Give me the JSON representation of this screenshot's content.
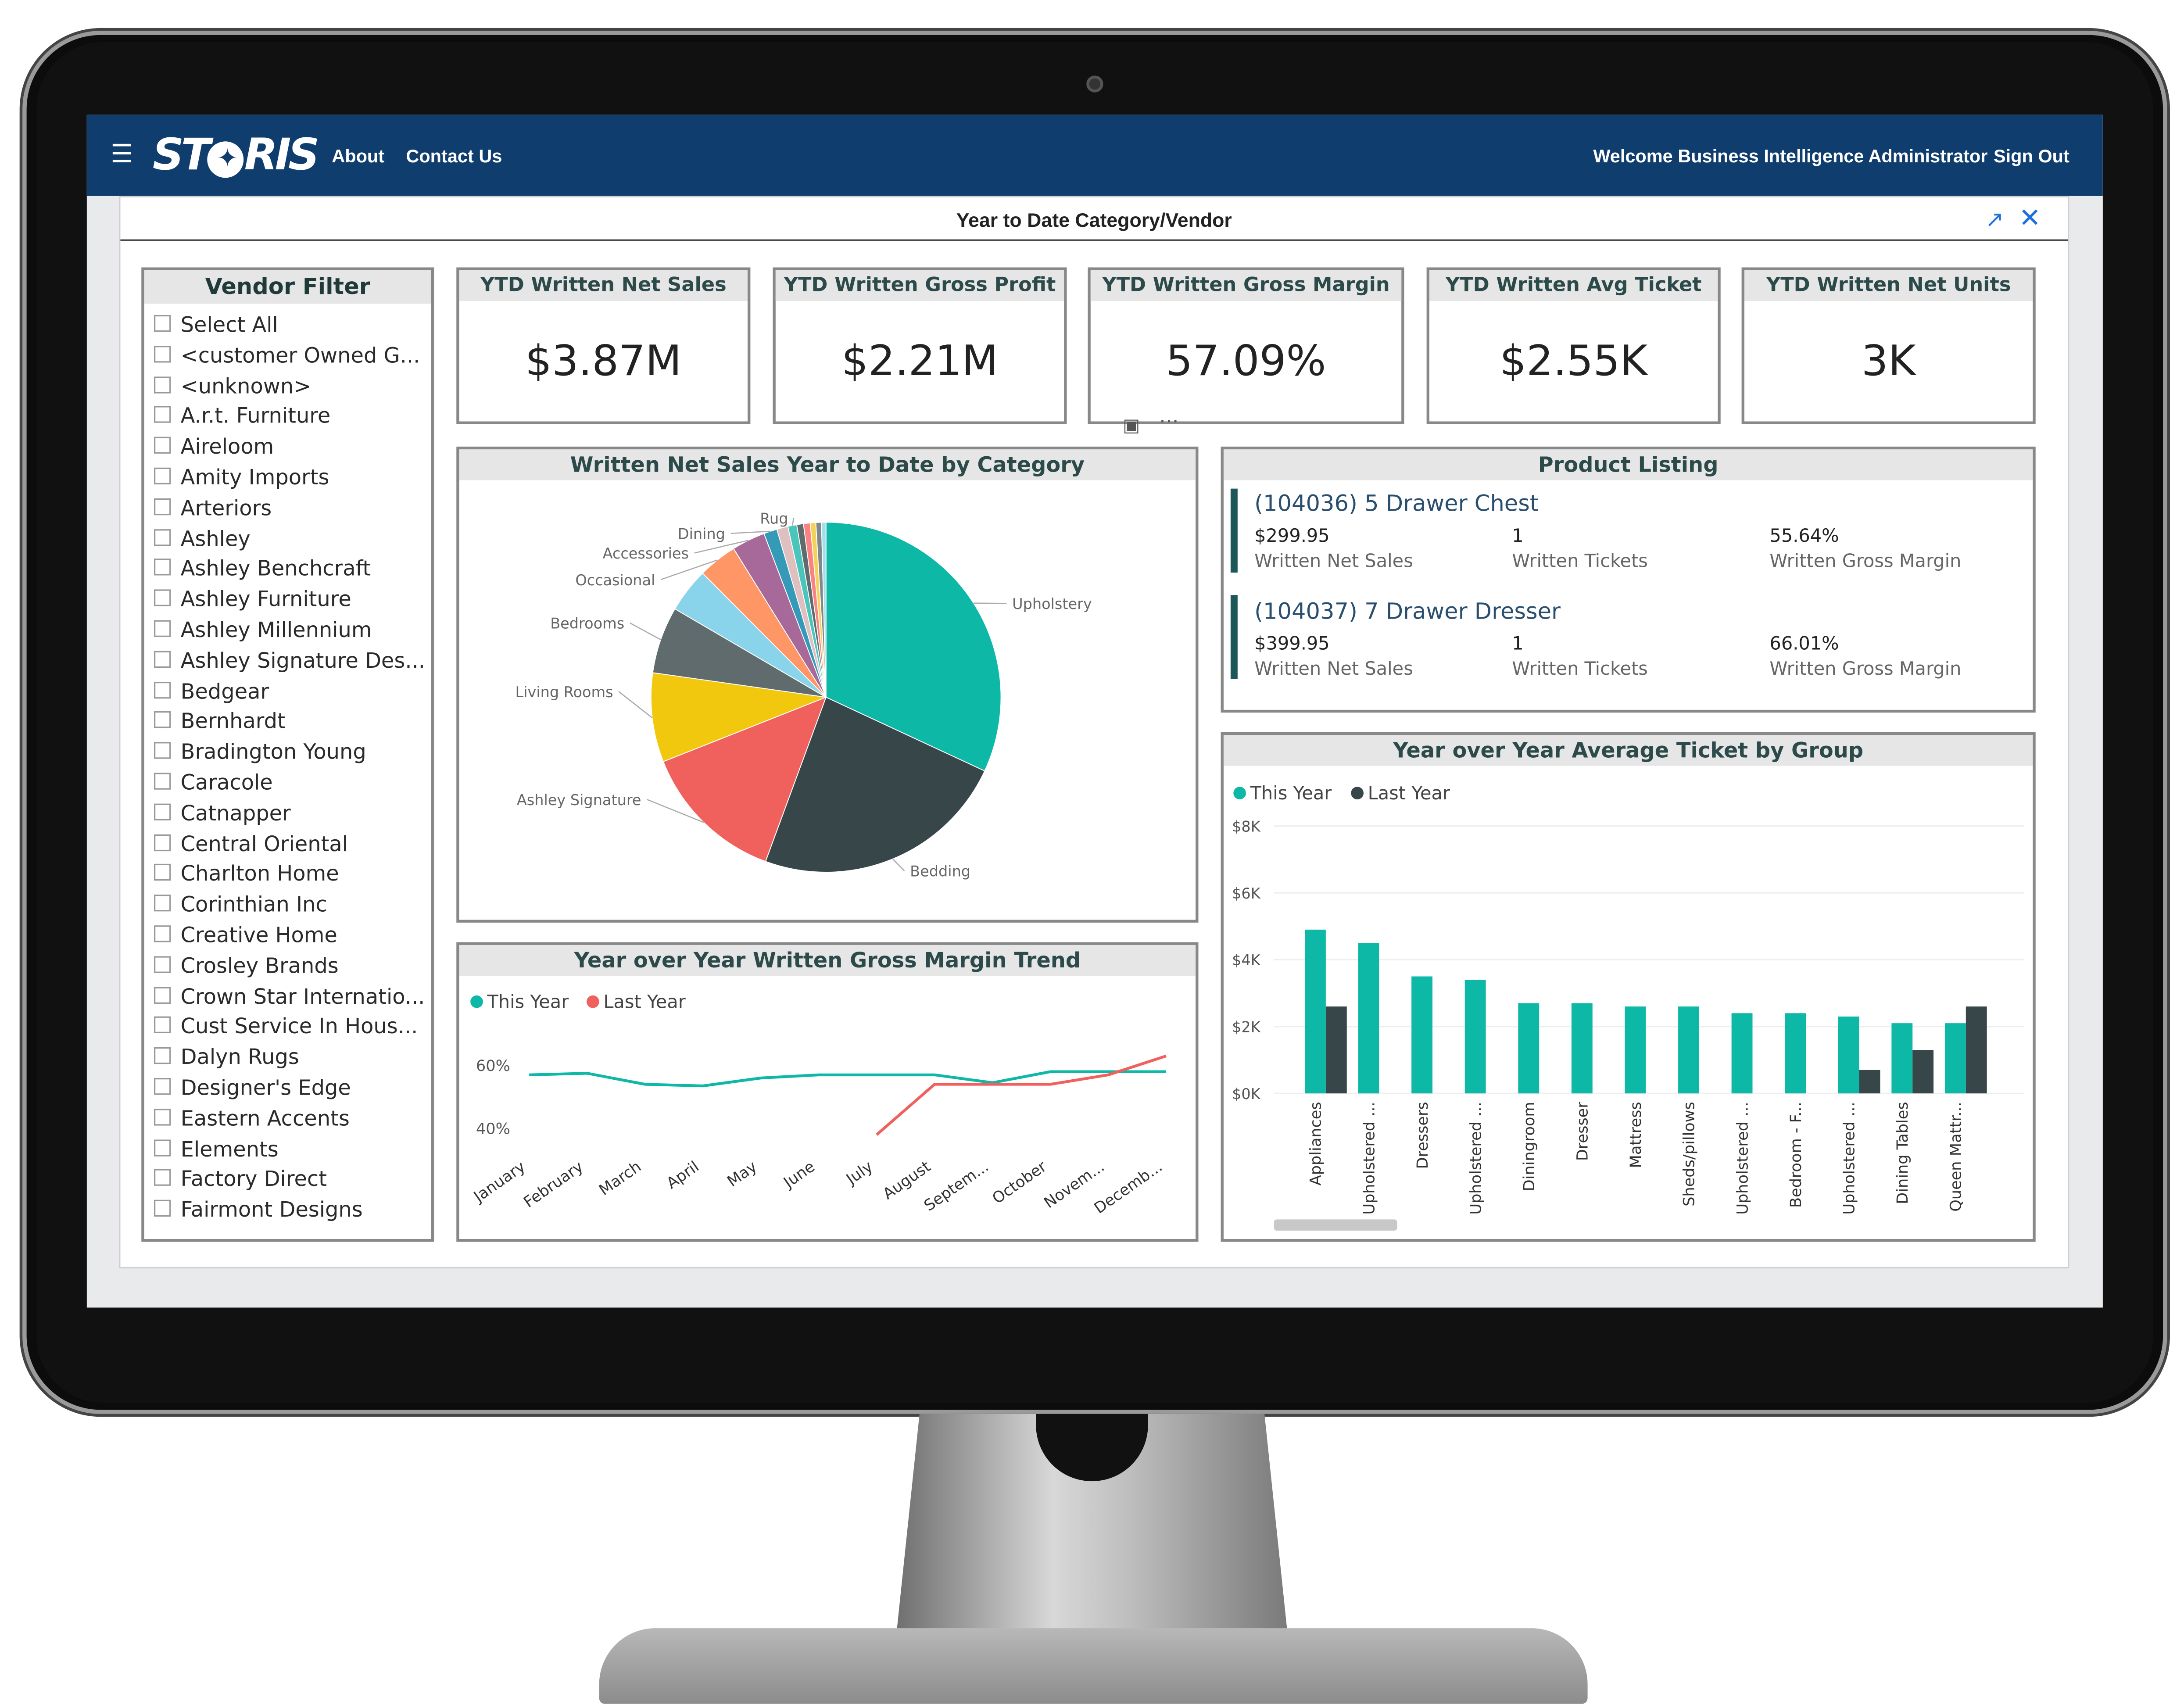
{
  "nav": {
    "brand": "STORIS",
    "about": "About",
    "contact": "Contact Us",
    "welcome": "Welcome Business Intelligence Administrator",
    "signout": "Sign Out"
  },
  "report": {
    "title": "Year to Date Category/Vendor"
  },
  "vendor_filter": {
    "title": "Vendor Filter",
    "items": [
      "Select All",
      "<customer Owned G...",
      "<unknown>",
      "A.r.t. Furniture",
      "Aireloom",
      "Amity Imports",
      "Arteriors",
      "Ashley",
      "Ashley Benchcraft",
      "Ashley Furniture",
      "Ashley Millennium",
      "Ashley Signature Des...",
      "Bedgear",
      "Bernhardt",
      "Bradington Young",
      "Caracole",
      "Catnapper",
      "Central Oriental",
      "Charlton Home",
      "Corinthian Inc",
      "Creative Home",
      "Crosley Brands",
      "Crown Star Internatio...",
      "Cust Service In Hous...",
      "Dalyn Rugs",
      "Designer's Edge",
      "Eastern Accents",
      "Elements",
      "Factory Direct",
      "Fairmont Designs"
    ]
  },
  "kpis": [
    {
      "title": "YTD Written Net Sales",
      "value": "$3.87M"
    },
    {
      "title": "YTD Written Gross Profit",
      "value": "$2.21M"
    },
    {
      "title": "YTD Written Gross Margin",
      "value": "57.09%"
    },
    {
      "title": "YTD Written Avg Ticket",
      "value": "$2.55K"
    },
    {
      "title": "YTD Written Net Units",
      "value": "3K"
    }
  ],
  "product_listing": {
    "title": "Product Listing",
    "items": [
      {
        "name": "(104036) 5 Drawer Chest",
        "sales": "$299.95",
        "sales_label": "Written Net Sales",
        "tickets": "1",
        "tickets_label": "Written Tickets",
        "margin": "55.64%",
        "margin_label": "Written Gross Margin"
      },
      {
        "name": "(104037) 7 Drawer Dresser",
        "sales": "$399.95",
        "sales_label": "Written Net Sales",
        "tickets": "1",
        "tickets_label": "Written Tickets",
        "margin": "66.01%",
        "margin_label": "Written Gross Margin"
      }
    ]
  },
  "chart_data": [
    {
      "type": "pie",
      "title": "Written Net Sales Year to Date by Category",
      "slices": [
        {
          "label": "Upholstery",
          "value": 31,
          "color": "#0eb8a7"
        },
        {
          "label": "Bedding",
          "value": 23,
          "color": "#374649"
        },
        {
          "label": "Ashley Signature",
          "value": 13,
          "color": "#f0605d"
        },
        {
          "label": "Living Rooms",
          "value": 8,
          "color": "#f2c80f"
        },
        {
          "label": "Bedrooms",
          "value": 6,
          "color": "#5f6b6d"
        },
        {
          "label": "",
          "value": 4,
          "color": "#8ad4eb"
        },
        {
          "label": "Occasional",
          "value": 3.5,
          "color": "#fe9666"
        },
        {
          "label": "Accessories",
          "value": 3,
          "color": "#a66999"
        },
        {
          "label": "Dining",
          "value": 1.2,
          "color": "#3599b8"
        },
        {
          "label": "",
          "value": 1,
          "color": "#dfbfbf"
        },
        {
          "label": "Rug",
          "value": 0.8,
          "color": "#4ac5bb"
        },
        {
          "label": "",
          "value": 0.6,
          "color": "#5f6b6d"
        },
        {
          "label": "",
          "value": 0.6,
          "color": "#fb8281"
        },
        {
          "label": "",
          "value": 0.5,
          "color": "#f4d25a"
        },
        {
          "label": "",
          "value": 0.5,
          "color": "#7f898a"
        },
        {
          "label": "",
          "value": 0.4,
          "color": "#a4ddee"
        }
      ]
    },
    {
      "type": "line",
      "title": "Year over Year Written Gross Margin Trend",
      "categories": [
        "January",
        "February",
        "March",
        "April",
        "May",
        "June",
        "July",
        "August",
        "Septem...",
        "October",
        "Novem...",
        "Decemb..."
      ],
      "yticks": [
        "60%",
        "40%"
      ],
      "ylim": [
        30,
        70
      ],
      "series": [
        {
          "name": "This Year",
          "color": "#0eb8a7",
          "values": [
            57,
            57.5,
            54,
            53.5,
            56,
            57,
            57,
            57,
            54.5,
            58,
            58,
            58
          ]
        },
        {
          "name": "Last Year",
          "color": "#f0605d",
          "values": [
            null,
            null,
            null,
            null,
            null,
            null,
            38,
            54,
            54,
            54,
            57,
            63
          ]
        }
      ]
    },
    {
      "type": "bar",
      "title": "Year over Year Average Ticket by Group",
      "categories": [
        "Appliances",
        "Upholstered ...",
        "Dressers",
        "Upholstered ...",
        "Diningroom",
        "Dresser",
        "Mattress",
        "Sheds/pillows",
        "Upholstered ...",
        "Bedroom - F...",
        "Upholstered ...",
        "Dining Tables",
        "Queen Mattr..."
      ],
      "yticks": [
        "$8K",
        "$6K",
        "$4K",
        "$2K",
        "$0K"
      ],
      "ylim": [
        0,
        8
      ],
      "series": [
        {
          "name": "This Year",
          "color": "#0eb8a7",
          "values": [
            4.9,
            4.5,
            3.5,
            3.4,
            2.7,
            2.7,
            2.6,
            2.6,
            2.4,
            2.4,
            2.3,
            2.1,
            2.1
          ]
        },
        {
          "name": "Last Year",
          "color": "#374649",
          "values": [
            2.6,
            null,
            null,
            null,
            null,
            null,
            null,
            null,
            null,
            null,
            0.7,
            1.3,
            2.6
          ]
        }
      ]
    }
  ]
}
